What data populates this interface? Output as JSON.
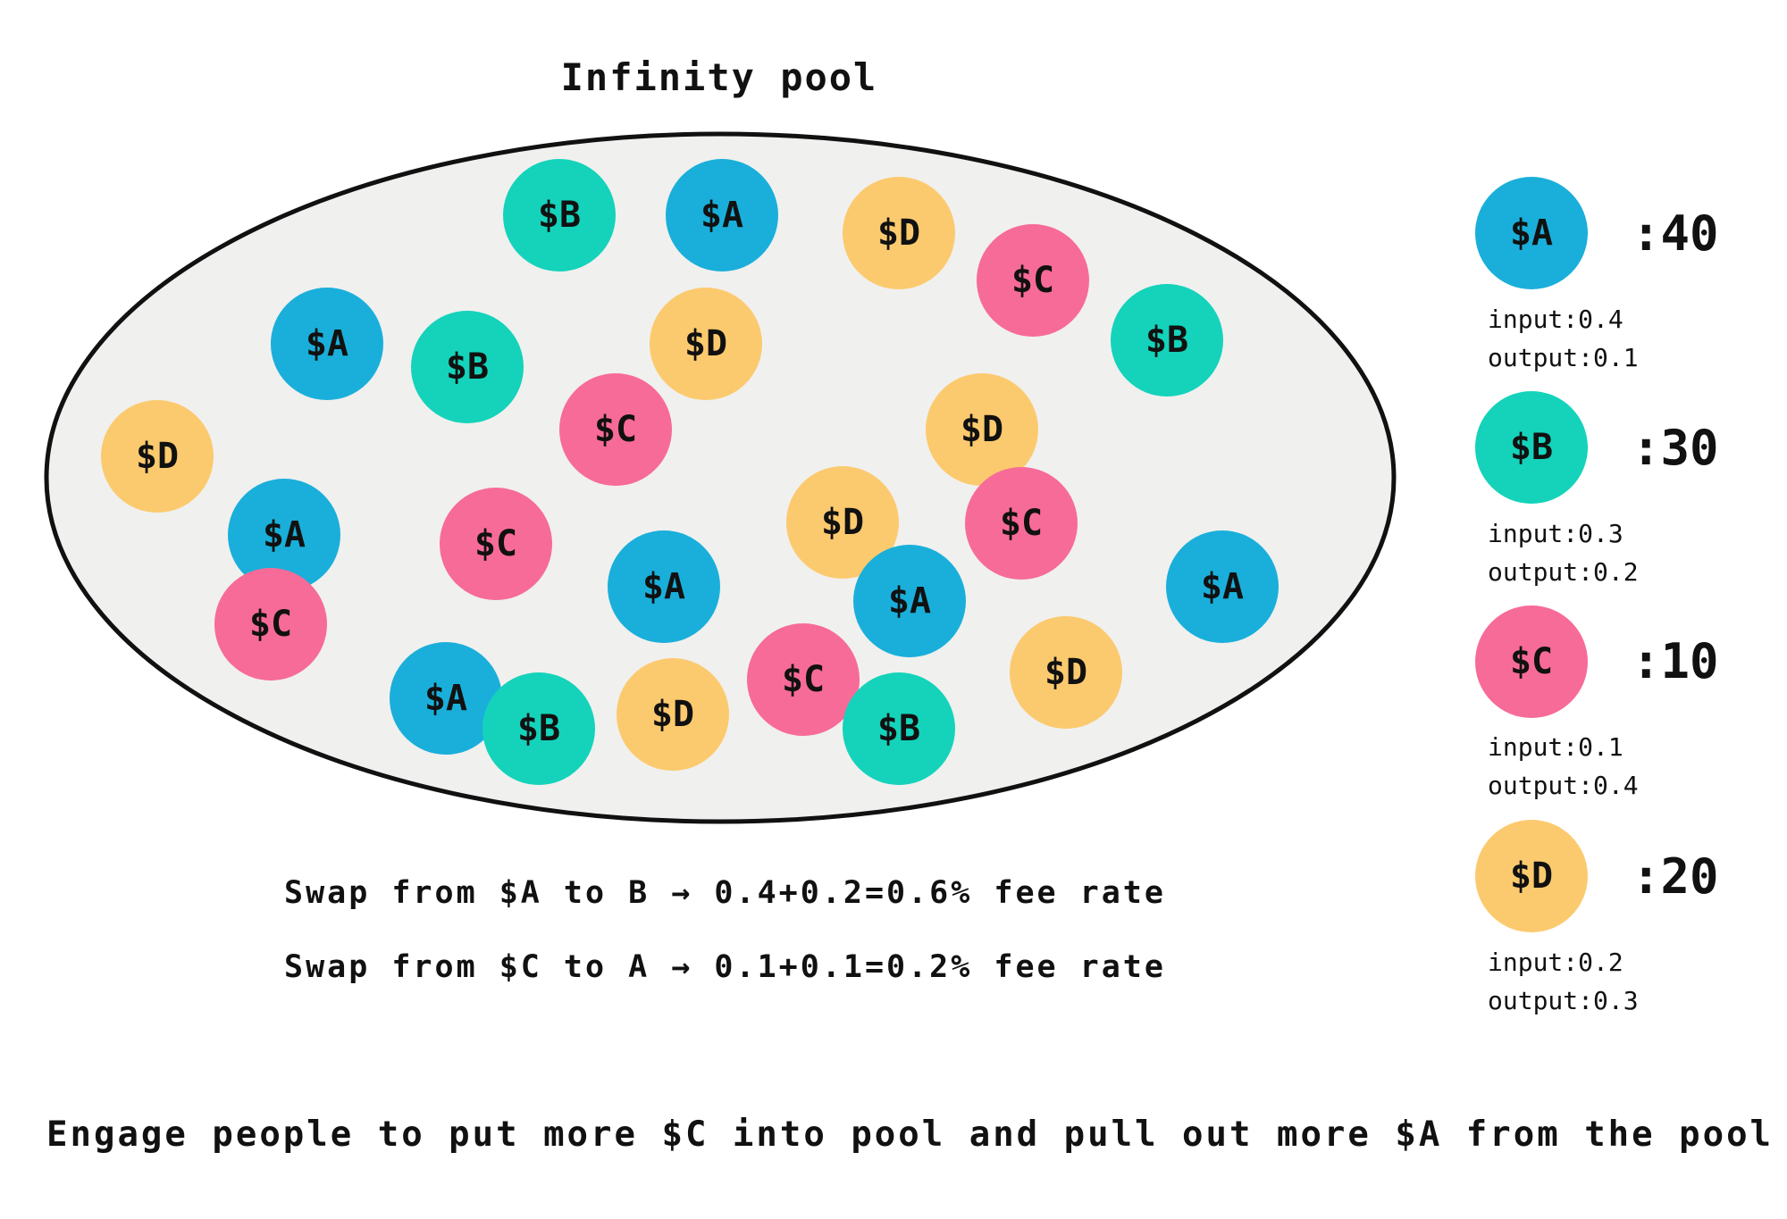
{
  "title": "Infinity pool",
  "colors": {
    "A": "#1AAFDA",
    "B": "#14D3BA",
    "C": "#F76B98",
    "D": "#FCCA6E",
    "pool_fill": "#F0F0EF",
    "pool_stroke": "#111111"
  },
  "pool_coins": [
    {
      "token": "B",
      "label": "$B"
    },
    {
      "token": "A",
      "label": "$A"
    },
    {
      "token": "D",
      "label": "$D"
    },
    {
      "token": "C",
      "label": "$C"
    },
    {
      "token": "A",
      "label": "$A"
    },
    {
      "token": "B",
      "label": "$B"
    },
    {
      "token": "D",
      "label": "$D"
    },
    {
      "token": "B",
      "label": "$B"
    },
    {
      "token": "C",
      "label": "$C"
    },
    {
      "token": "D",
      "label": "$D"
    },
    {
      "token": "D",
      "label": "$D"
    },
    {
      "token": "A",
      "label": "$A"
    },
    {
      "token": "C",
      "label": "$C"
    },
    {
      "token": "C",
      "label": "$C"
    },
    {
      "token": "D",
      "label": "$D"
    },
    {
      "token": "A",
      "label": "$A"
    },
    {
      "token": "A",
      "label": "$A"
    },
    {
      "token": "A",
      "label": "$A"
    },
    {
      "token": "C",
      "label": "$C"
    },
    {
      "token": "D",
      "label": "$D"
    },
    {
      "token": "A",
      "label": "$A"
    },
    {
      "token": "B",
      "label": "$B"
    },
    {
      "token": "D",
      "label": "$D"
    },
    {
      "token": "C",
      "label": "$C"
    },
    {
      "token": "B",
      "label": "$B"
    }
  ],
  "legend": [
    {
      "token": "A",
      "label": "$A",
      "count": ":40",
      "input": "input:0.4",
      "output": "output:0.1"
    },
    {
      "token": "B",
      "label": "$B",
      "count": ":30",
      "input": "input:0.3",
      "output": "output:0.2"
    },
    {
      "token": "C",
      "label": "$C",
      "count": ":10",
      "input": "input:0.1",
      "output": "output:0.4"
    },
    {
      "token": "D",
      "label": "$D",
      "count": ":20",
      "input": "input:0.2",
      "output": "output:0.3"
    }
  ],
  "swaps": [
    "Swap from $A to B → 0.4+0.2=0.6% fee rate",
    "Swap from $C to A → 0.1+0.1=0.2% fee rate"
  ],
  "engage": "Engage people to put more $C into pool and pull out more $A from the pool"
}
